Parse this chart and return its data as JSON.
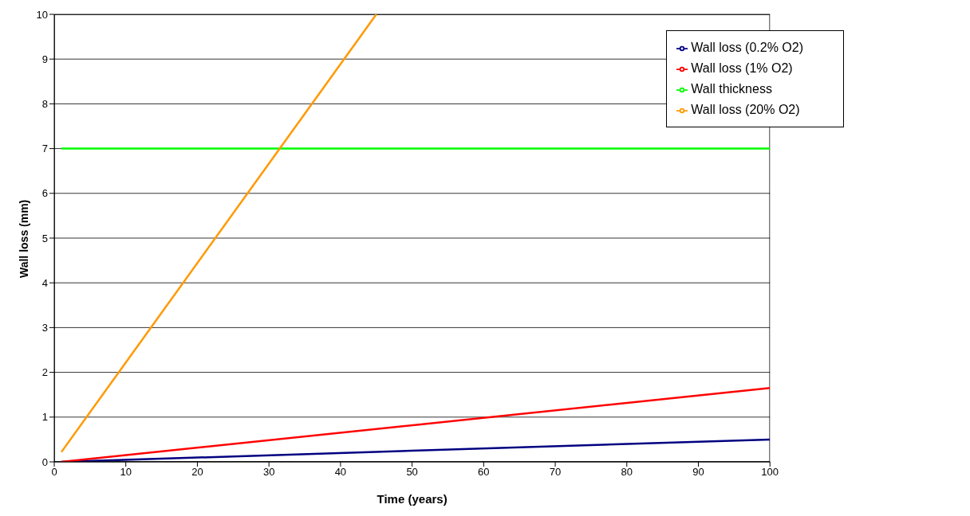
{
  "chart_data": {
    "type": "line",
    "xlabel": "Time (years)",
    "ylabel": "Wall loss (mm)",
    "xlim": [
      0,
      100
    ],
    "xticks": [
      0,
      10,
      20,
      30,
      40,
      50,
      60,
      70,
      80,
      90,
      100
    ],
    "ylim": [
      0,
      10
    ],
    "yticks": [
      0,
      1,
      2,
      3,
      4,
      5,
      6,
      7,
      8,
      9,
      10
    ],
    "grid": "y",
    "legend": "top right",
    "marker": "none",
    "line_style": "solid",
    "series": [
      {
        "name": "Wall loss (0.2% O2)",
        "color": "#000080",
        "x": [
          1,
          100
        ],
        "values": [
          0,
          0.5
        ]
      },
      {
        "name": "Wall loss (1% O2)",
        "color": "#ff0000",
        "x": [
          1,
          100
        ],
        "values": [
          0,
          1.65
        ]
      },
      {
        "name": "Wall thickness",
        "color": "#00ff00",
        "x": [
          1,
          100
        ],
        "values": [
          7,
          7
        ]
      },
      {
        "name": "Wall loss (20% O2)",
        "color": "#ff9900",
        "x": [
          1,
          45
        ],
        "values": [
          0.22,
          10
        ]
      }
    ]
  }
}
